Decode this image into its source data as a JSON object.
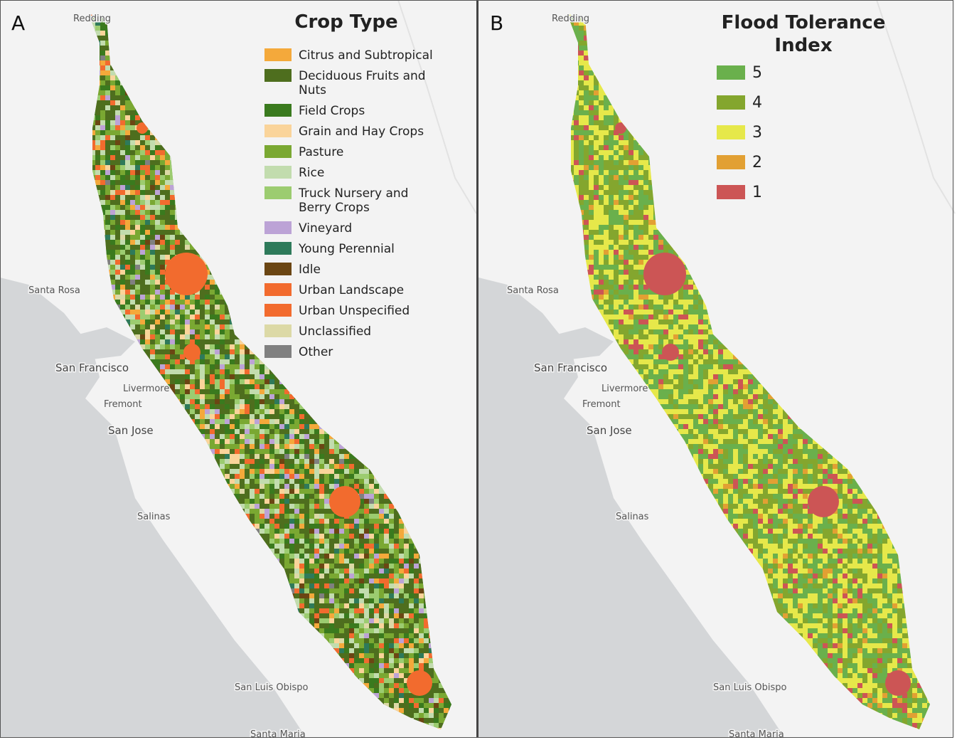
{
  "panels": [
    {
      "label": "A",
      "legend": {
        "title": "Crop Type",
        "items": [
          {
            "label": "Citrus and Subtropical",
            "color": "#f4a93b"
          },
          {
            "label": "Deciduous Fruits and Nuts",
            "color": "#4e6e1e"
          },
          {
            "label": "Field Crops",
            "color": "#3a7a1e"
          },
          {
            "label": "Grain and Hay Crops",
            "color": "#fad49a"
          },
          {
            "label": "Pasture",
            "color": "#7aa832"
          },
          {
            "label": "Rice",
            "color": "#c2dcae"
          },
          {
            "label": "Truck Nursery and Berry Crops",
            "color": "#9ccc70"
          },
          {
            "label": "Vineyard",
            "color": "#bca3d6"
          },
          {
            "label": "Young Perennial",
            "color": "#2e7a5a"
          },
          {
            "label": "Idle",
            "color": "#6b4613"
          },
          {
            "label": "Urban Landscape",
            "color": "#f26b2e"
          },
          {
            "label": "Urban Unspecified",
            "color": "#f26b2e"
          },
          {
            "label": "Unclassified",
            "color": "#dcd9a6"
          },
          {
            "label": "Other",
            "color": "#808080"
          }
        ]
      },
      "places": [
        "Redding",
        "Santa Rosa",
        "San Francisco",
        "Livermore",
        "Fremont",
        "San Jose",
        "Salinas",
        "San Luis Obispo",
        "Santa Maria"
      ]
    },
    {
      "label": "B",
      "legend": {
        "title": "Flood Tolerance Index",
        "items": [
          {
            "label": "5",
            "color": "#6ab04c"
          },
          {
            "label": "4",
            "color": "#84a62e"
          },
          {
            "label": "3",
            "color": "#e6e84a"
          },
          {
            "label": "2",
            "color": "#e2a033"
          },
          {
            "label": "1",
            "color": "#cc5555"
          }
        ]
      },
      "places": [
        "Redding",
        "Santa Rosa",
        "San Francisco",
        "Livermore",
        "Fremont",
        "San Jose",
        "Salinas",
        "San Luis Obispo",
        "Santa Maria"
      ]
    }
  ]
}
